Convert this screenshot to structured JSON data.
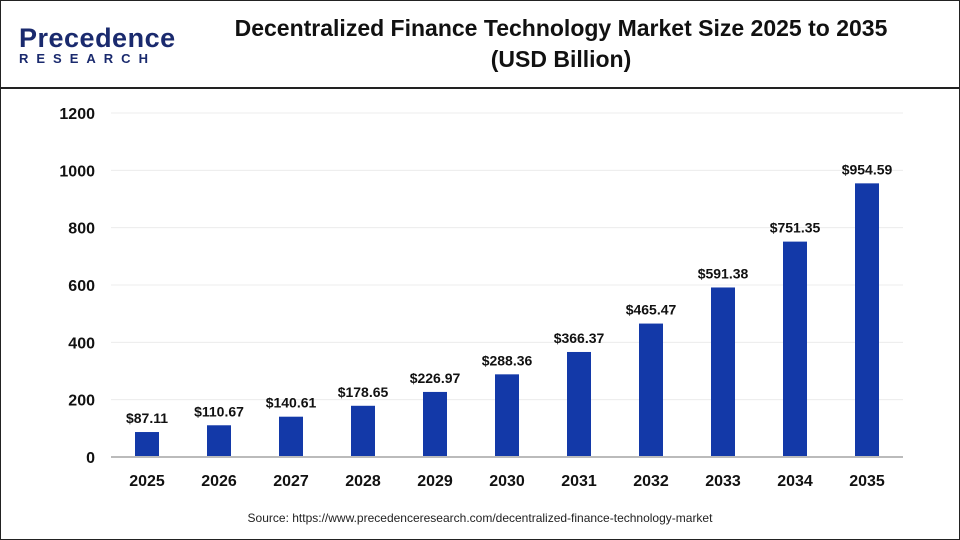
{
  "logo": {
    "line1": "Precedence",
    "line2": "RESEARCH"
  },
  "title_line1": "Decentralized Finance Technology Market Size 2025 to 2035",
  "title_line2": "(USD Billion)",
  "source": "Source: https://www.precedenceresearch.com/decentralized-finance-technology-market",
  "chart_data": {
    "type": "bar",
    "title": "Decentralized Finance Technology Market Size 2025 to 2035 (USD Billion)",
    "categories": [
      "2025",
      "2026",
      "2027",
      "2028",
      "2029",
      "2030",
      "2031",
      "2032",
      "2033",
      "2034",
      "2035"
    ],
    "values": [
      87.11,
      110.67,
      140.61,
      178.65,
      226.97,
      288.36,
      366.37,
      465.47,
      591.38,
      751.35,
      954.59
    ],
    "data_labels": [
      "$87.11",
      "$110.67",
      "$140.61",
      "$178.65",
      "$226.97",
      "$288.36",
      "$366.37",
      "$465.47",
      "$591.38",
      "$751.35",
      "$954.59"
    ],
    "yticks": [
      0,
      200,
      400,
      600,
      800,
      1000,
      1200
    ],
    "ylim": [
      0,
      1200
    ],
    "grid": true,
    "bar_color": "#1339a8"
  }
}
